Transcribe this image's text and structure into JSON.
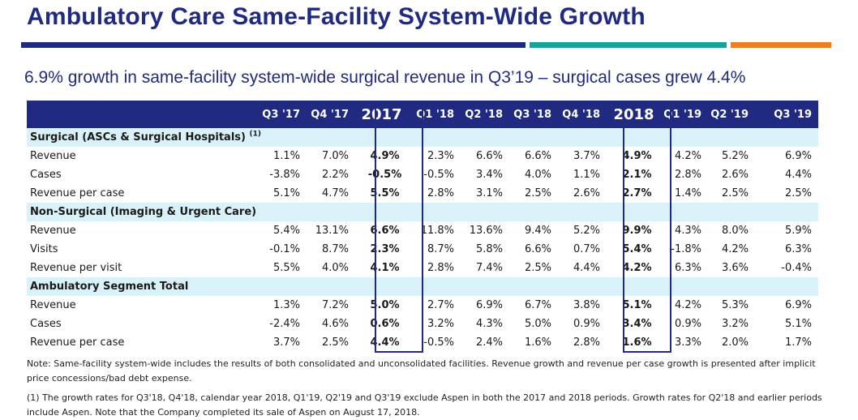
{
  "title": "Ambulatory Care Same-Facility System-Wide Growth",
  "subtitle": "6.9% growth in same-facility system-wide surgical revenue in Q3’19 – surgical cases grew 4.4%",
  "colors": {
    "navy": "#1f2a80",
    "teal": "#16a29a",
    "orange": "#ef7d22",
    "section_bg": "#d9f1f8"
  },
  "table": {
    "headers": [
      "Q3 '17",
      "Q4 '17",
      "2017",
      "Q1 '18",
      "Q2 '18",
      "Q3 '18",
      "Q4 '18",
      "2018",
      "Q1 '19",
      "Q2 '19",
      "Q3 '19"
    ],
    "sections": [
      {
        "label": "Surgical (ASCs & Surgical Hospitals)",
        "footnote_ref": "(1)",
        "rows": [
          {
            "label": "Revenue",
            "values": [
              "1.1%",
              "7.0%",
              "4.9%",
              "2.3%",
              "6.6%",
              "6.6%",
              "3.7%",
              "4.9%",
              "4.2%",
              "5.2%",
              "6.9%"
            ]
          },
          {
            "label": "Cases",
            "values": [
              "-3.8%",
              "2.2%",
              "-0.5%",
              "-0.5%",
              "3.4%",
              "4.0%",
              "1.1%",
              "2.1%",
              "2.8%",
              "2.6%",
              "4.4%"
            ]
          },
          {
            "label": "Revenue per case",
            "values": [
              "5.1%",
              "4.7%",
              "5.5%",
              "2.8%",
              "3.1%",
              "2.5%",
              "2.6%",
              "2.7%",
              "1.4%",
              "2.5%",
              "2.5%"
            ]
          }
        ]
      },
      {
        "label": "Non-Surgical (Imaging & Urgent Care)",
        "footnote_ref": "",
        "rows": [
          {
            "label": "Revenue",
            "values": [
              "5.4%",
              "13.1%",
              "6.6%",
              "11.8%",
              "13.6%",
              "9.4%",
              "5.2%",
              "9.9%",
              "4.3%",
              "8.0%",
              "5.9%"
            ]
          },
          {
            "label": "Visits",
            "values": [
              "-0.1%",
              "8.7%",
              "2.3%",
              "8.7%",
              "5.8%",
              "6.6%",
              "0.7%",
              "5.4%",
              "-1.8%",
              "4.2%",
              "6.3%"
            ]
          },
          {
            "label": "Revenue per visit",
            "values": [
              "5.5%",
              "4.0%",
              "4.1%",
              "2.8%",
              "7.4%",
              "2.5%",
              "4.4%",
              "4.2%",
              "6.3%",
              "3.6%",
              "-0.4%"
            ]
          }
        ]
      },
      {
        "label": "Ambulatory Segment Total",
        "footnote_ref": "",
        "rows": [
          {
            "label": "Revenue",
            "values": [
              "1.3%",
              "7.2%",
              "5.0%",
              "2.7%",
              "6.9%",
              "6.7%",
              "3.8%",
              "5.1%",
              "4.2%",
              "5.3%",
              "6.9%"
            ]
          },
          {
            "label": "Cases",
            "values": [
              "-2.4%",
              "4.6%",
              "0.6%",
              "3.2%",
              "4.3%",
              "5.0%",
              "0.9%",
              "3.4%",
              "0.9%",
              "3.2%",
              "5.1%"
            ]
          },
          {
            "label": "Revenue per case",
            "values": [
              "3.7%",
              "2.5%",
              "4.4%",
              "-0.5%",
              "2.4%",
              "1.6%",
              "2.8%",
              "1.6%",
              "3.3%",
              "2.0%",
              "1.7%"
            ]
          }
        ]
      }
    ]
  },
  "notes": {
    "note": "Note: Same-facility system-wide includes the results of both consolidated and unconsolidated facilities.  Revenue growth and revenue per case growth is presented after implicit price concessions/bad debt expense.",
    "footnote": "(1) The growth rates for Q3'18, Q4'18, calendar year 2018, Q1'19, Q2'19 and Q3'19 exclude Aspen in both the 2017 and 2018 periods.  Growth rates for Q2'18 and earlier periods include Aspen.  Note that the Company completed its sale of Aspen on August 17, 2018."
  }
}
